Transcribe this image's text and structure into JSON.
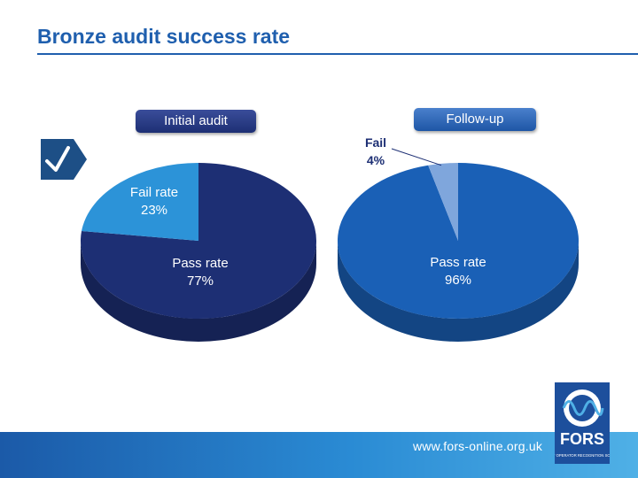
{
  "slide": {
    "title": "Bronze audit success rate",
    "footer_url": "www.fors-online.org.uk",
    "logo_text": "FORS",
    "logo_subtext": "FLEET OPERATOR RECOGNITION SCHEME"
  },
  "labels": {
    "initial_audit": "Initial audit",
    "follow_up": "Follow-up"
  },
  "colors": {
    "title": "#1f5fae",
    "initial_pass": "#1d2f74",
    "initial_fail": "#2c93d8",
    "followup_pass": "#1a60b6",
    "followup_fail": "#7fa6dc",
    "footer": "#2a8bd4"
  },
  "icons": {
    "tick": "check-icon",
    "logo": "fors-logo-icon"
  },
  "chart_data": [
    {
      "type": "pie",
      "title": "Initial audit",
      "slices": [
        {
          "label": "Pass rate",
          "value": 77,
          "display": "77%"
        },
        {
          "label": "Fail rate",
          "value": 23,
          "display": "23%"
        }
      ]
    },
    {
      "type": "pie",
      "title": "Follow-up",
      "slices": [
        {
          "label": "Pass rate",
          "value": 96,
          "display": "96%"
        },
        {
          "label": "Fail",
          "value": 4,
          "display": "4%"
        }
      ]
    }
  ]
}
